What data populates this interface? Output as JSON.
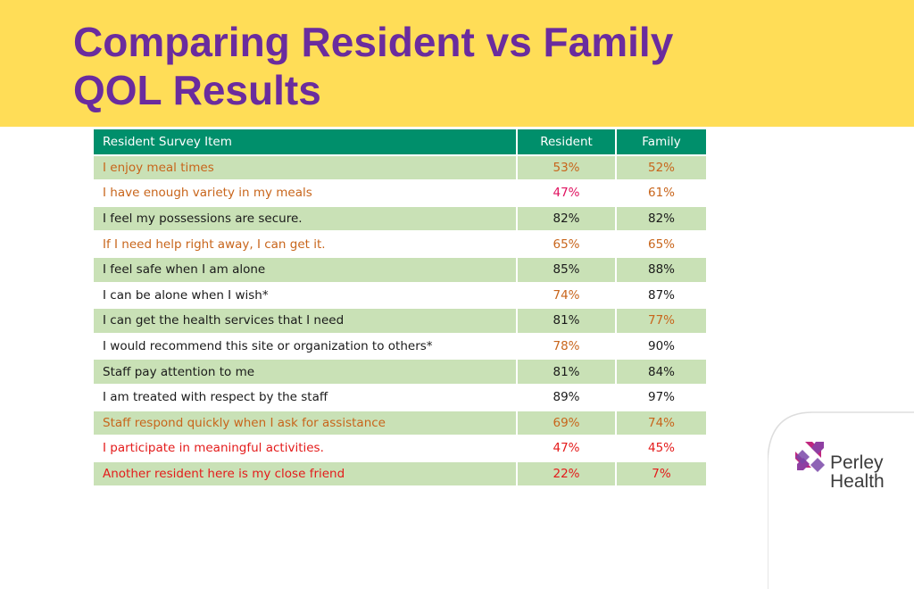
{
  "slide": {
    "title_line1": "Comparing Resident vs Family",
    "title_line2": "QOL Results"
  },
  "colors": {
    "header_bg": "#ffdd57",
    "title": "#6a2c9e",
    "table_header_bg": "#008f6b",
    "row_shade": "#c9e1b6",
    "text_dark": "#1a1a1a",
    "text_orange": "#c8651b",
    "text_pink": "#e0115f",
    "text_red": "#e41b1b"
  },
  "table": {
    "headers": [
      "Resident Survey Item",
      "Resident",
      "Family"
    ],
    "rows": [
      {
        "item": "I enjoy meal times",
        "resident": "53%",
        "family": "52%",
        "item_color": "#c8651b",
        "resident_color": "#c8651b",
        "family_color": "#c8651b"
      },
      {
        "item": "I have enough variety in my meals",
        "resident": "47%",
        "family": "61%",
        "item_color": "#c8651b",
        "resident_color": "#e0115f",
        "family_color": "#c8651b"
      },
      {
        "item": "I feel my possessions are secure.",
        "resident": "82%",
        "family": "82%",
        "item_color": "#1a1a1a",
        "resident_color": "#1a1a1a",
        "family_color": "#1a1a1a"
      },
      {
        "item": "If I need help right away, I can get it.",
        "resident": "65%",
        "family": "65%",
        "item_color": "#c8651b",
        "resident_color": "#c8651b",
        "family_color": "#c8651b"
      },
      {
        "item": "I feel safe when I am alone",
        "resident": "85%",
        "family": "88%",
        "item_color": "#1a1a1a",
        "resident_color": "#1a1a1a",
        "family_color": "#1a1a1a"
      },
      {
        "item": "I can be alone when I wish*",
        "resident": "74%",
        "family": "87%",
        "item_color": "#1a1a1a",
        "resident_color": "#c8651b",
        "family_color": "#1a1a1a"
      },
      {
        "item": "I can get the health services that I need",
        "resident": "81%",
        "family": "77%",
        "item_color": "#1a1a1a",
        "resident_color": "#1a1a1a",
        "family_color": "#c8651b"
      },
      {
        "item": "I would recommend this site or organization to others*",
        "resident": "78%",
        "family": "90%",
        "item_color": "#1a1a1a",
        "resident_color": "#c8651b",
        "family_color": "#1a1a1a"
      },
      {
        "item": "Staff pay attention to me",
        "resident": "81%",
        "family": "84%",
        "item_color": "#1a1a1a",
        "resident_color": "#1a1a1a",
        "family_color": "#1a1a1a"
      },
      {
        "item": "I am treated with respect by the staff",
        "resident": "89%",
        "family": "97%",
        "item_color": "#1a1a1a",
        "resident_color": "#1a1a1a",
        "family_color": "#1a1a1a"
      },
      {
        "item": "Staff respond quickly when I ask for assistance",
        "resident": "69%",
        "family": "74%",
        "item_color": "#c8651b",
        "resident_color": "#c8651b",
        "family_color": "#c8651b"
      },
      {
        "item": "I participate in meaningful activities.",
        "resident": "47%",
        "family": "45%",
        "item_color": "#e41b1b",
        "resident_color": "#e41b1b",
        "family_color": "#e41b1b"
      },
      {
        "item": "Another resident here is my close friend",
        "resident": "22%",
        "family": "7%",
        "item_color": "#e41b1b",
        "resident_color": "#e41b1b",
        "family_color": "#e41b1b"
      }
    ]
  },
  "logo": {
    "line1": "Perley",
    "line2": "Health",
    "icon": "perley-health-logo-mark"
  }
}
